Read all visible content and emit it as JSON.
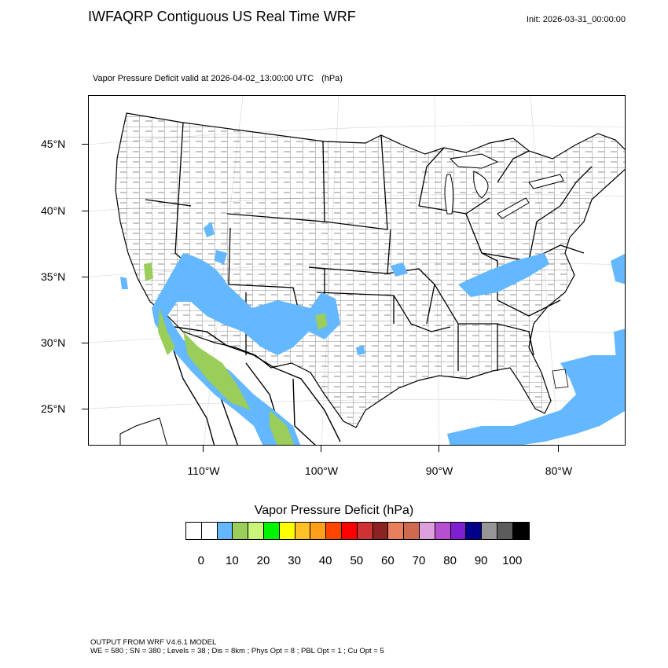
{
  "header": {
    "title": "IWFAQRP Contiguous US Real Time WRF",
    "init": "Init: 2026-03-31_00:00:00"
  },
  "map": {
    "field": "Vapor Pressure Deficit valid at 2026-04-02_13:00:00 UTC",
    "units": "(hPa)",
    "lat_labels": [
      "45°N",
      "40°N",
      "35°N",
      "30°N",
      "25°N"
    ],
    "lon_labels": [
      "110°W",
      "100°W",
      "90°W",
      "80°W"
    ]
  },
  "colorbar": {
    "title": "Vapor Pressure Deficit  (hPa)",
    "colors": [
      "#ffffff",
      "#ffffff",
      "#63b8ff",
      "#9acd5a",
      "#c8f57a",
      "#00f400",
      "#ffff00",
      "#ffc125",
      "#ff9f1c",
      "#ff4500",
      "#ff0000",
      "#cd3333",
      "#8b2323",
      "#e9805d",
      "#cd6a50",
      "#dda0dd",
      "#b64fd0",
      "#7e20cf",
      "#00008b",
      "#969696",
      "#5c5c5c",
      "#000000"
    ],
    "labels": [
      "0",
      "10",
      "20",
      "30",
      "40",
      "50",
      "60",
      "70",
      "80",
      "90",
      "100"
    ]
  },
  "footer": {
    "line1": "OUTPUT FROM WRF V4.6.1 MODEL",
    "line2": "WE = 580 ; SN = 380 ; Levels = 38 ; Dis = 8km ; Phys Opt = 8 ; PBL Opt = 1 ; Cu Opt = 5"
  }
}
